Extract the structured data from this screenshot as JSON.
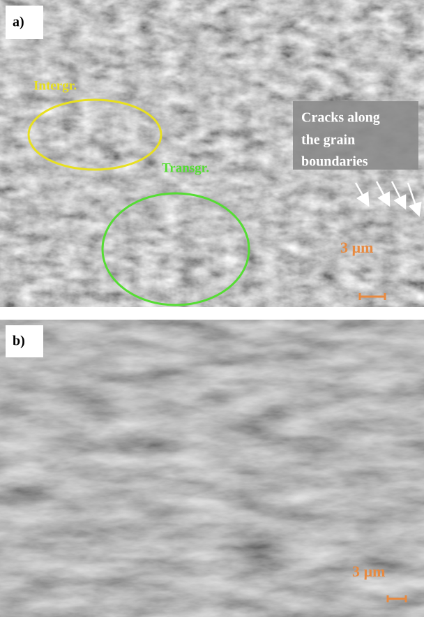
{
  "panels": [
    {
      "label": "a)",
      "intergranular": "Intergr.",
      "transgranular": "Transgr.",
      "cracks_note": [
        "Cracks along",
        "the grain",
        "boundaries"
      ],
      "scale_label": "3 µm"
    },
    {
      "label": "b)",
      "scale_label": "3 µm"
    }
  ]
}
